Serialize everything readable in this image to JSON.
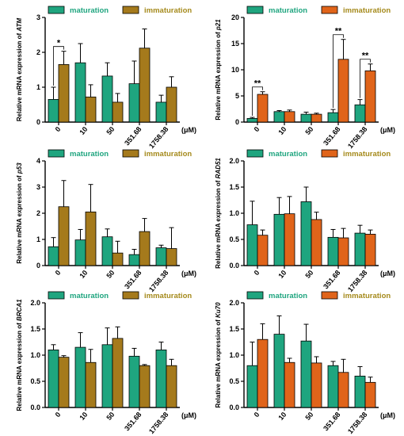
{
  "colors": {
    "maturation": "#1fa57f",
    "immaturation_brown": "#a57a1c",
    "immaturation_orange": "#e0641a",
    "maturation_legend_text": "#1fa57f",
    "immaturation_legend_text": "#a58a1c"
  },
  "chart_data": [
    {
      "type": "bar",
      "gene": "ATM",
      "ylabel_prefix": "Relative mRNA expression of ",
      "categories": [
        "0",
        "10",
        "50",
        "351.68",
        "1758.38"
      ],
      "unit": "(μM)",
      "ylim": [
        0,
        3
      ],
      "yticks": [
        "0",
        "1",
        "2",
        "3"
      ],
      "legend": [
        "maturation",
        "immaturation"
      ],
      "immat_color": "brown",
      "series": [
        {
          "name": "maturation",
          "values": [
            0.65,
            1.7,
            1.32,
            1.1,
            0.57
          ],
          "errors": [
            0.35,
            0.55,
            0.38,
            0.65,
            0.2
          ]
        },
        {
          "name": "immaturation",
          "values": [
            1.65,
            0.72,
            0.57,
            2.12,
            1.0
          ],
          "errors": [
            0.38,
            0.35,
            0.25,
            0.55,
            0.3
          ]
        }
      ],
      "significance": [
        {
          "group": 0,
          "label": "*"
        }
      ]
    },
    {
      "type": "bar",
      "gene": "p21",
      "ylabel_prefix": "Relative mRNA expression of ",
      "categories": [
        "0",
        "10",
        "50",
        "351.68",
        "1758.38"
      ],
      "unit": "(μM)",
      "ylim": [
        0,
        20
      ],
      "yticks": [
        "0",
        "5",
        "10",
        "15",
        "20"
      ],
      "legend": [
        "maturation",
        "immaturation"
      ],
      "immat_color": "orange",
      "series": [
        {
          "name": "maturation",
          "values": [
            0.7,
            2.0,
            1.5,
            1.8,
            3.3
          ],
          "errors": [
            0.2,
            0.2,
            0.4,
            0.6,
            1.0
          ]
        },
        {
          "name": "immaturation",
          "values": [
            5.3,
            2.0,
            1.5,
            12.0,
            9.8
          ],
          "errors": [
            0.5,
            0.3,
            0.2,
            3.8,
            1.3
          ]
        }
      ],
      "significance": [
        {
          "group": 0,
          "label": "**"
        },
        {
          "group": 3,
          "label": "**"
        },
        {
          "group": 4,
          "label": "**"
        }
      ]
    },
    {
      "type": "bar",
      "gene": "p53",
      "ylabel_prefix": "Relative mRNA expression of ",
      "categories": [
        "0",
        "10",
        "50",
        "351.68",
        "1758.38"
      ],
      "unit": "(μM)",
      "ylim": [
        0,
        4
      ],
      "yticks": [
        "0",
        "1",
        "2",
        "3",
        "4"
      ],
      "legend": [
        "maturation",
        "immaturation"
      ],
      "immat_color": "brown",
      "series": [
        {
          "name": "maturation",
          "values": [
            0.72,
            0.98,
            1.1,
            0.42,
            0.68
          ],
          "errors": [
            0.35,
            0.4,
            0.3,
            0.2,
            0.1
          ]
        },
        {
          "name": "immaturation",
          "values": [
            2.25,
            2.05,
            0.48,
            1.3,
            0.65
          ],
          "errors": [
            1.0,
            1.05,
            0.45,
            0.5,
            0.8
          ]
        }
      ],
      "significance": []
    },
    {
      "type": "bar",
      "gene": "RAD51",
      "ylabel_prefix": "Relative mRNA expression of ",
      "categories": [
        "0",
        "10",
        "50",
        "351.68",
        "1758.38"
      ],
      "unit": "(μM)",
      "ylim": [
        0,
        2
      ],
      "yticks": [
        "0.0",
        "0.5",
        "1.0",
        "1.5",
        "2.0"
      ],
      "legend": [
        "maturation",
        "immaturation"
      ],
      "immat_color": "orange",
      "series": [
        {
          "name": "maturation",
          "values": [
            0.78,
            0.98,
            1.22,
            0.54,
            0.62
          ],
          "errors": [
            0.45,
            0.32,
            0.28,
            0.15,
            0.15
          ]
        },
        {
          "name": "immaturation",
          "values": [
            0.58,
            0.99,
            0.88,
            0.53,
            0.6
          ],
          "errors": [
            0.1,
            0.33,
            0.14,
            0.18,
            0.08
          ]
        }
      ],
      "significance": []
    },
    {
      "type": "bar",
      "gene": "BRCA1",
      "ylabel_prefix": "Relative mRNA expression of ",
      "categories": [
        "0",
        "10",
        "50",
        "351.68",
        "1758.38"
      ],
      "unit": "(μM)",
      "ylim": [
        0,
        2
      ],
      "yticks": [
        "0.0",
        "0.5",
        "1.0",
        "1.5",
        "2.0"
      ],
      "legend": [
        "maturation",
        "immaturation"
      ],
      "immat_color": "brown",
      "series": [
        {
          "name": "maturation",
          "values": [
            1.1,
            1.15,
            1.2,
            0.98,
            1.1
          ],
          "errors": [
            0.1,
            0.28,
            0.32,
            0.15,
            0.15
          ]
        },
        {
          "name": "immaturation",
          "values": [
            0.96,
            0.86,
            1.32,
            0.8,
            0.8
          ],
          "errors": [
            0.03,
            0.25,
            0.22,
            0.02,
            0.12
          ]
        }
      ],
      "significance": []
    },
    {
      "type": "bar",
      "gene": "Ku70",
      "ylabel_prefix": "Relative mRNA expression of ",
      "categories": [
        "0",
        "10",
        "50",
        "351.68",
        "1758.38"
      ],
      "unit": "(μM)",
      "ylim": [
        0,
        2
      ],
      "yticks": [
        "0.0",
        "0.5",
        "1.0",
        "1.5",
        "2.0"
      ],
      "legend": [
        "maturation",
        "immaturation"
      ],
      "immat_color": "orange",
      "series": [
        {
          "name": "maturation",
          "values": [
            0.8,
            1.4,
            1.27,
            0.8,
            0.6
          ],
          "errors": [
            0.45,
            0.35,
            0.32,
            0.08,
            0.18
          ]
        },
        {
          "name": "immaturation",
          "values": [
            1.3,
            0.86,
            0.85,
            0.67,
            0.48
          ],
          "errors": [
            0.3,
            0.08,
            0.12,
            0.25,
            0.1
          ]
        }
      ],
      "significance": []
    }
  ]
}
